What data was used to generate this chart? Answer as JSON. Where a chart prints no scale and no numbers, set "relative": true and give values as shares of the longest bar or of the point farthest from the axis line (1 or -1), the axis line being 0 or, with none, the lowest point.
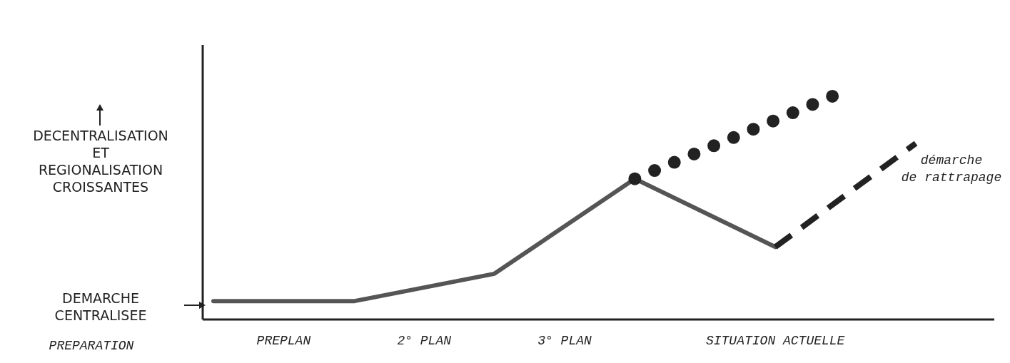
{
  "chart_data": {
    "type": "line",
    "relative": true,
    "categories": [
      null,
      "PREPLAN",
      null,
      "2° PLAN",
      null,
      "3° PLAN",
      null,
      null,
      "SITUATION ACTUELLE",
      null,
      null
    ],
    "series": [
      {
        "color": "#555555",
        "line_style": "solid",
        "values": [
          0.08,
          null,
          0.08,
          null,
          0.2,
          null,
          0.615,
          null,
          0.317,
          null,
          null
        ]
      },
      {
        "color": "#222222",
        "line_style": "dotted",
        "values": [
          null,
          null,
          null,
          null,
          null,
          null,
          0.615,
          null,
          null,
          1.0,
          null
        ]
      },
      {
        "color": "#222222",
        "line_style": "dashed",
        "values": [
          null,
          null,
          null,
          null,
          null,
          null,
          null,
          null,
          0.317,
          null,
          0.77
        ]
      }
    ],
    "annotations": [
      "DECENTRALISATION\nET\nREGIONALISATION\nCROISSANTES",
      "DEMARCHE\nCENTRALISEE",
      "PREPARATION",
      "démarche\nde rattrapage"
    ],
    "marker": "none"
  }
}
